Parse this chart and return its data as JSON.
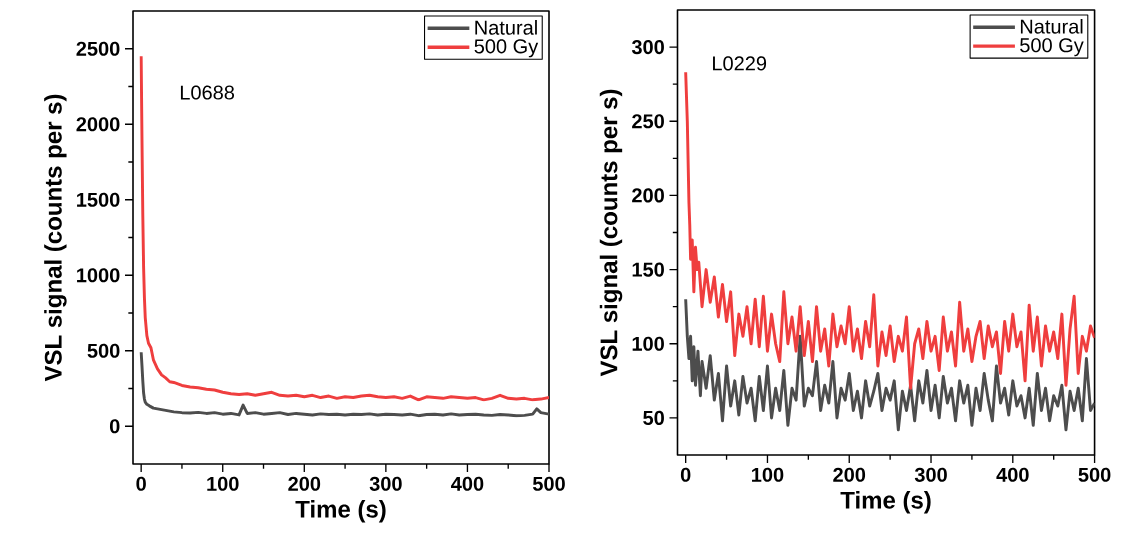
{
  "chart_data": [
    {
      "type": "line",
      "xlabel": "Time (s)",
      "ylabel": "VSL signal (counts per s)",
      "annotations": [
        "L0688"
      ],
      "xlim": [
        -10,
        500
      ],
      "ylim": [
        -250,
        2750
      ],
      "xticks": [
        0,
        100,
        200,
        300,
        400,
        500
      ],
      "yticks": [
        0,
        500,
        1000,
        1500,
        2000,
        2500
      ],
      "legend": "top right",
      "series": [
        {
          "name": "Natural",
          "color": "#4d4d4d",
          "x": [
            0,
            1,
            2,
            3,
            4,
            5,
            7,
            10,
            15,
            20,
            25,
            30,
            40,
            50,
            60,
            70,
            80,
            90,
            100,
            110,
            120,
            125,
            130,
            140,
            150,
            160,
            170,
            180,
            190,
            200,
            210,
            220,
            230,
            240,
            250,
            260,
            270,
            280,
            290,
            300,
            310,
            320,
            330,
            340,
            350,
            360,
            370,
            380,
            390,
            400,
            410,
            420,
            430,
            440,
            450,
            460,
            470,
            480,
            485,
            490,
            500
          ],
          "values": [
            490,
            400,
            300,
            220,
            180,
            160,
            145,
            135,
            120,
            115,
            110,
            105,
            95,
            90,
            88,
            92,
            85,
            90,
            80,
            85,
            75,
            140,
            85,
            90,
            80,
            85,
            90,
            78,
            85,
            80,
            75,
            82,
            78,
            80,
            75,
            80,
            78,
            82,
            75,
            80,
            78,
            75,
            80,
            70,
            78,
            80,
            75,
            82,
            75,
            78,
            80,
            75,
            72,
            78,
            75,
            70,
            72,
            80,
            115,
            90,
            80
          ]
        },
        {
          "name": "500 Gy",
          "color": "#ef3e3e",
          "x": [
            0,
            1,
            2,
            3,
            4,
            5,
            7,
            9,
            12,
            15,
            20,
            25,
            30,
            35,
            40,
            45,
            50,
            60,
            70,
            80,
            90,
            100,
            110,
            120,
            130,
            140,
            150,
            160,
            170,
            180,
            190,
            200,
            210,
            220,
            230,
            240,
            250,
            260,
            270,
            280,
            290,
            300,
            310,
            320,
            330,
            340,
            350,
            360,
            370,
            380,
            390,
            400,
            410,
            420,
            430,
            440,
            450,
            460,
            470,
            480,
            490,
            500
          ],
          "values": [
            2450,
            1900,
            1400,
            1050,
            850,
            720,
            600,
            550,
            520,
            440,
            380,
            340,
            320,
            295,
            290,
            280,
            270,
            260,
            255,
            245,
            240,
            225,
            215,
            210,
            215,
            205,
            215,
            225,
            205,
            200,
            205,
            195,
            205,
            190,
            200,
            185,
            195,
            190,
            200,
            205,
            195,
            190,
            195,
            185,
            200,
            175,
            195,
            190,
            185,
            195,
            190,
            185,
            190,
            175,
            185,
            205,
            185,
            180,
            185,
            175,
            180,
            190
          ]
        }
      ]
    },
    {
      "type": "line",
      "xlabel": "Time (s)",
      "ylabel": "VSL signal (counts per s)",
      "annotations": [
        "L0229"
      ],
      "xlim": [
        -10,
        500
      ],
      "ylim": [
        25,
        325
      ],
      "xticks": [
        0,
        100,
        200,
        300,
        400,
        500
      ],
      "yticks": [
        50,
        100,
        150,
        200,
        250,
        300
      ],
      "legend": "top right",
      "series": [
        {
          "name": "Natural",
          "color": "#4d4d4d",
          "x": [
            0,
            2,
            4,
            6,
            8,
            10,
            12,
            15,
            18,
            20,
            25,
            30,
            35,
            40,
            45,
            50,
            55,
            60,
            65,
            70,
            75,
            80,
            85,
            90,
            95,
            100,
            105,
            110,
            115,
            120,
            125,
            130,
            135,
            140,
            145,
            150,
            155,
            160,
            165,
            170,
            175,
            180,
            185,
            190,
            195,
            200,
            205,
            210,
            215,
            220,
            225,
            230,
            235,
            240,
            245,
            250,
            255,
            260,
            265,
            270,
            275,
            280,
            285,
            290,
            295,
            300,
            305,
            310,
            315,
            320,
            325,
            330,
            335,
            340,
            345,
            350,
            355,
            360,
            365,
            370,
            375,
            380,
            385,
            390,
            395,
            400,
            405,
            410,
            415,
            420,
            425,
            430,
            435,
            440,
            445,
            450,
            455,
            460,
            465,
            470,
            475,
            480,
            485,
            490,
            495,
            500
          ],
          "values": [
            130,
            105,
            90,
            105,
            75,
            98,
            72,
            95,
            65,
            88,
            70,
            92,
            62,
            80,
            48,
            85,
            58,
            75,
            52,
            78,
            60,
            70,
            48,
            78,
            55,
            85,
            50,
            70,
            55,
            82,
            45,
            70,
            62,
            105,
            58,
            70,
            65,
            88,
            55,
            72,
            60,
            88,
            50,
            70,
            62,
            80,
            55,
            68,
            50,
            75,
            58,
            68,
            80,
            55,
            70,
            62,
            75,
            42,
            68,
            55,
            72,
            48,
            75,
            60,
            82,
            55,
            72,
            50,
            78,
            60,
            70,
            48,
            75,
            60,
            72,
            45,
            70,
            55,
            80,
            62,
            48,
            85,
            60,
            70,
            52,
            75,
            58,
            65,
            50,
            70,
            45,
            80,
            55,
            70,
            48,
            65,
            58,
            72,
            42,
            68,
            55,
            70,
            48,
            90,
            55,
            60
          ]
        },
        {
          "name": "500 Gy",
          "color": "#ef3e3e",
          "x": [
            0,
            2,
            4,
            5,
            6,
            8,
            10,
            12,
            14,
            16,
            18,
            20,
            25,
            30,
            35,
            40,
            45,
            50,
            55,
            60,
            65,
            70,
            75,
            80,
            85,
            90,
            95,
            100,
            105,
            110,
            115,
            120,
            125,
            130,
            135,
            140,
            145,
            150,
            155,
            160,
            165,
            170,
            175,
            180,
            185,
            190,
            195,
            200,
            205,
            210,
            215,
            220,
            225,
            230,
            235,
            240,
            245,
            250,
            255,
            260,
            265,
            270,
            275,
            280,
            285,
            290,
            295,
            300,
            305,
            310,
            315,
            320,
            325,
            330,
            335,
            340,
            345,
            350,
            355,
            360,
            365,
            370,
            375,
            380,
            385,
            390,
            395,
            400,
            405,
            410,
            415,
            420,
            425,
            430,
            435,
            440,
            445,
            450,
            455,
            460,
            465,
            470,
            475,
            480,
            485,
            490,
            495,
            500
          ],
          "values": [
            283,
            250,
            195,
            180,
            157,
            170,
            135,
            165,
            150,
            155,
            140,
            125,
            150,
            128,
            145,
            118,
            140,
            115,
            135,
            92,
            120,
            105,
            125,
            100,
            130,
            98,
            132,
            95,
            120,
            100,
            88,
            135,
            100,
            118,
            95,
            125,
            92,
            115,
            88,
            125,
            95,
            110,
            85,
            120,
            98,
            112,
            100,
            125,
            95,
            110,
            90,
            115,
            98,
            133,
            85,
            108,
            92,
            112,
            88,
            105,
            95,
            118,
            70,
            100,
            110,
            90,
            115,
            95,
            105,
            82,
            118,
            95,
            108,
            85,
            128,
            95,
            110,
            88,
            105,
            115,
            90,
            112,
            98,
            108,
            80,
            115,
            95,
            120,
            98,
            108,
            75,
            126,
            95,
            118,
            85,
            112,
            95,
            108,
            90,
            120,
            72,
            110,
            132,
            80,
            105,
            95,
            112,
            104
          ]
        }
      ]
    }
  ]
}
